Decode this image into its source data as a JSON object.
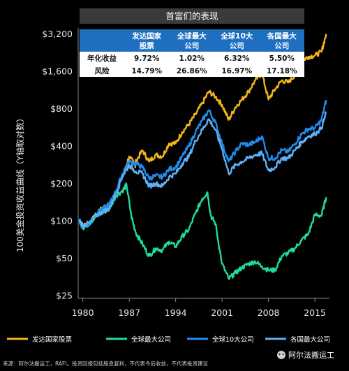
{
  "chart_data": {
    "type": "line",
    "title": "首富们的表现",
    "ylabel": "100美金投资收益曲线（Y轴取对数）",
    "y_scale": "log",
    "ylim": [
      25,
      3400
    ],
    "xlim": [
      1979.3,
      2017.2
    ],
    "grid": false,
    "legend_position": "bottom",
    "x_ticks": [
      1980,
      1987,
      1994,
      2001,
      2008,
      2015
    ],
    "x_tick_labels": [
      "1980",
      "1987",
      "1994",
      "2001",
      "2008",
      "2015"
    ],
    "y_ticks": [
      3200,
      1600,
      800,
      400,
      200,
      100,
      50,
      25
    ],
    "y_tick_labels": [
      "$3,200",
      "$1,600",
      "$800",
      "$400",
      "$200",
      "$100",
      "$50",
      "$25"
    ],
    "series": [
      {
        "name": "发达国家股票",
        "color": "#F2B51B",
        "points": [
          [
            1979.5,
            100
          ],
          [
            1980,
            92
          ],
          [
            1981,
            95
          ],
          [
            1982,
            112
          ],
          [
            1983,
            128
          ],
          [
            1984,
            135
          ],
          [
            1985,
            170
          ],
          [
            1986,
            230
          ],
          [
            1987,
            330
          ],
          [
            1987.9,
            280
          ],
          [
            1988,
            300
          ],
          [
            1989,
            370
          ],
          [
            1990,
            300
          ],
          [
            1991,
            340
          ],
          [
            1992,
            330
          ],
          [
            1993,
            420
          ],
          [
            1994,
            420
          ],
          [
            1995,
            520
          ],
          [
            1996,
            600
          ],
          [
            1997,
            720
          ],
          [
            1998,
            880
          ],
          [
            1999,
            1100
          ],
          [
            2000,
            1000
          ],
          [
            2001,
            860
          ],
          [
            2002,
            650
          ],
          [
            2003,
            820
          ],
          [
            2004,
            950
          ],
          [
            2005,
            1100
          ],
          [
            2006,
            1350
          ],
          [
            2007,
            1550
          ],
          [
            2008,
            950
          ],
          [
            2009,
            1150
          ],
          [
            2010,
            1350
          ],
          [
            2011,
            1300
          ],
          [
            2012,
            1500
          ],
          [
            2013,
            1950
          ],
          [
            2014,
            2100
          ],
          [
            2015,
            2150
          ],
          [
            2016,
            2300
          ],
          [
            2016.7,
            3200
          ]
        ]
      },
      {
        "name": "全球最大公司",
        "color": "#1EDBA0",
        "points": [
          [
            1979.5,
            100
          ],
          [
            1980,
            88
          ],
          [
            1981,
            95
          ],
          [
            1982,
            110
          ],
          [
            1983,
            118
          ],
          [
            1984,
            125
          ],
          [
            1985,
            160
          ],
          [
            1986,
            175
          ],
          [
            1986.6,
            195
          ],
          [
            1987.3,
            110
          ],
          [
            1988,
            80
          ],
          [
            1989,
            65
          ],
          [
            1990,
            52
          ],
          [
            1991,
            60
          ],
          [
            1992,
            58
          ],
          [
            1993,
            68
          ],
          [
            1994,
            62
          ],
          [
            1995,
            75
          ],
          [
            1996,
            85
          ],
          [
            1997,
            115
          ],
          [
            1998,
            150
          ],
          [
            1998.8,
            170
          ],
          [
            1999.3,
            110
          ],
          [
            2000,
            95
          ],
          [
            2001,
            45
          ],
          [
            2002,
            34
          ],
          [
            2003,
            38
          ],
          [
            2004,
            42
          ],
          [
            2005,
            45
          ],
          [
            2006,
            47
          ],
          [
            2007,
            43
          ],
          [
            2008,
            40
          ],
          [
            2009,
            40
          ],
          [
            2010,
            52
          ],
          [
            2011,
            55
          ],
          [
            2012,
            60
          ],
          [
            2013,
            70
          ],
          [
            2014,
            78
          ],
          [
            2015,
            112
          ],
          [
            2016,
            110
          ],
          [
            2016.7,
            155
          ]
        ]
      },
      {
        "name": "全球10大公司",
        "color": "#1E8BF0",
        "points": [
          [
            1979.5,
            100
          ],
          [
            1980,
            90
          ],
          [
            1981,
            95
          ],
          [
            1982,
            115
          ],
          [
            1983,
            125
          ],
          [
            1984,
            135
          ],
          [
            1985,
            175
          ],
          [
            1986,
            240
          ],
          [
            1987,
            300
          ],
          [
            1988,
            290
          ],
          [
            1989,
            270
          ],
          [
            1990,
            220
          ],
          [
            1991,
            230
          ],
          [
            1992,
            225
          ],
          [
            1993,
            260
          ],
          [
            1994,
            270
          ],
          [
            1995,
            330
          ],
          [
            1996,
            400
          ],
          [
            1997,
            520
          ],
          [
            1998,
            640
          ],
          [
            1999,
            780
          ],
          [
            2000,
            620
          ],
          [
            2001,
            420
          ],
          [
            2002,
            300
          ],
          [
            2003,
            360
          ],
          [
            2004,
            420
          ],
          [
            2005,
            410
          ],
          [
            2006,
            430
          ],
          [
            2007,
            480
          ],
          [
            2008,
            320
          ],
          [
            2009,
            320
          ],
          [
            2010,
            370
          ],
          [
            2011,
            360
          ],
          [
            2012,
            420
          ],
          [
            2013,
            500
          ],
          [
            2014,
            550
          ],
          [
            2015,
            560
          ],
          [
            2016,
            650
          ],
          [
            2016.7,
            940
          ]
        ]
      },
      {
        "name": "各国最大公司",
        "color": "#5FB0F5",
        "points": [
          [
            1979.5,
            100
          ],
          [
            1980,
            92
          ],
          [
            1981,
            96
          ],
          [
            1982,
            110
          ],
          [
            1983,
            118
          ],
          [
            1984,
            125
          ],
          [
            1985,
            165
          ],
          [
            1986,
            230
          ],
          [
            1987,
            280
          ],
          [
            1988,
            250
          ],
          [
            1989,
            240
          ],
          [
            1990,
            190
          ],
          [
            1991,
            200
          ],
          [
            1992,
            190
          ],
          [
            1993,
            225
          ],
          [
            1994,
            240
          ],
          [
            1995,
            290
          ],
          [
            1996,
            330
          ],
          [
            1997,
            440
          ],
          [
            1998,
            540
          ],
          [
            1999,
            660
          ],
          [
            2000,
            540
          ],
          [
            2001,
            380
          ],
          [
            2002,
            240
          ],
          [
            2003,
            280
          ],
          [
            2004,
            300
          ],
          [
            2005,
            320
          ],
          [
            2006,
            340
          ],
          [
            2007,
            350
          ],
          [
            2008,
            255
          ],
          [
            2009,
            270
          ],
          [
            2010,
            320
          ],
          [
            2011,
            320
          ],
          [
            2012,
            370
          ],
          [
            2013,
            430
          ],
          [
            2014,
            480
          ],
          [
            2015,
            500
          ],
          [
            2016,
            560
          ],
          [
            2016.7,
            740
          ]
        ]
      }
    ]
  },
  "table": {
    "headers": [
      "",
      "发达国家\n股票",
      "全球最大\n公司",
      "全球10大\n公司",
      "各国最大\n公司"
    ],
    "rows": [
      {
        "label": "年化收益",
        "values": [
          "9.72%",
          "1.02%",
          "6.32%",
          "5.50%"
        ]
      },
      {
        "label": "风险",
        "values": [
          "14.79%",
          "26.86%",
          "16.97%",
          "17.18%"
        ]
      }
    ],
    "header_color": "#1E6FC0"
  },
  "source": "来源：阿尔法搬运工，RAFI。投资回报包括股息复利，不代表今后收益，不代表投资建议",
  "watermark": "阿尔法搬运工"
}
